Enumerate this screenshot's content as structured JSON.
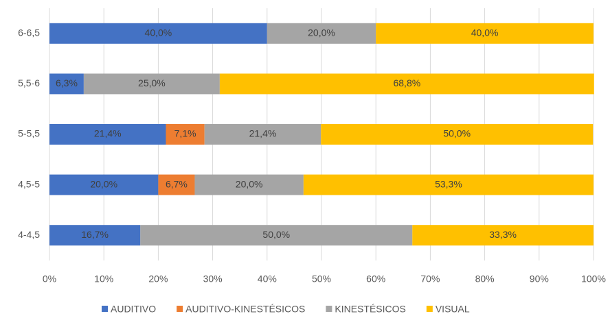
{
  "chart_data": {
    "type": "stacked-barh",
    "categories": [
      "6-6,5",
      "5,5-6",
      "5-5,5",
      "4,5-5",
      "4-4,5"
    ],
    "series": [
      {
        "name": "AUDITIVO",
        "color": "#4472c4",
        "values": [
          40.0,
          6.3,
          21.4,
          20.0,
          16.7
        ],
        "value_labels": [
          "40,0%",
          "6,3%",
          "21,4%",
          "20,0%",
          "16,7%"
        ]
      },
      {
        "name": "AUDITIVO-KINESTÉSICOS",
        "color": "#ed7d31",
        "values": [
          null,
          null,
          7.1,
          6.7,
          null
        ],
        "value_labels": [
          null,
          null,
          "7,1%",
          "6,7%",
          null
        ]
      },
      {
        "name": "KINESTÉSICOS",
        "color": "#a5a5a5",
        "values": [
          20.0,
          25.0,
          21.4,
          20.0,
          50.0
        ],
        "value_labels": [
          "20,0%",
          "25,0%",
          "21,4%",
          "20,0%",
          "50,0%"
        ]
      },
      {
        "name": "VISUAL",
        "color": "#ffc000",
        "values": [
          40.0,
          68.8,
          50.0,
          53.3,
          33.3
        ],
        "value_labels": [
          "40,0%",
          "68,8%",
          "50,0%",
          "53,3%",
          "33,3%"
        ]
      }
    ],
    "xlim": [
      0,
      100
    ],
    "xticks": [
      {
        "value": 0,
        "label": "0%"
      },
      {
        "value": 10,
        "label": "10%"
      },
      {
        "value": 20,
        "label": "20%"
      },
      {
        "value": 30,
        "label": "30%"
      },
      {
        "value": 40,
        "label": "40%"
      },
      {
        "value": 50,
        "label": "50%"
      },
      {
        "value": 60,
        "label": "60%"
      },
      {
        "value": 70,
        "label": "70%"
      },
      {
        "value": 80,
        "label": "80%"
      },
      {
        "value": 90,
        "label": "90%"
      },
      {
        "value": 100,
        "label": "100%"
      }
    ],
    "grid": true,
    "legend": "bottom"
  }
}
